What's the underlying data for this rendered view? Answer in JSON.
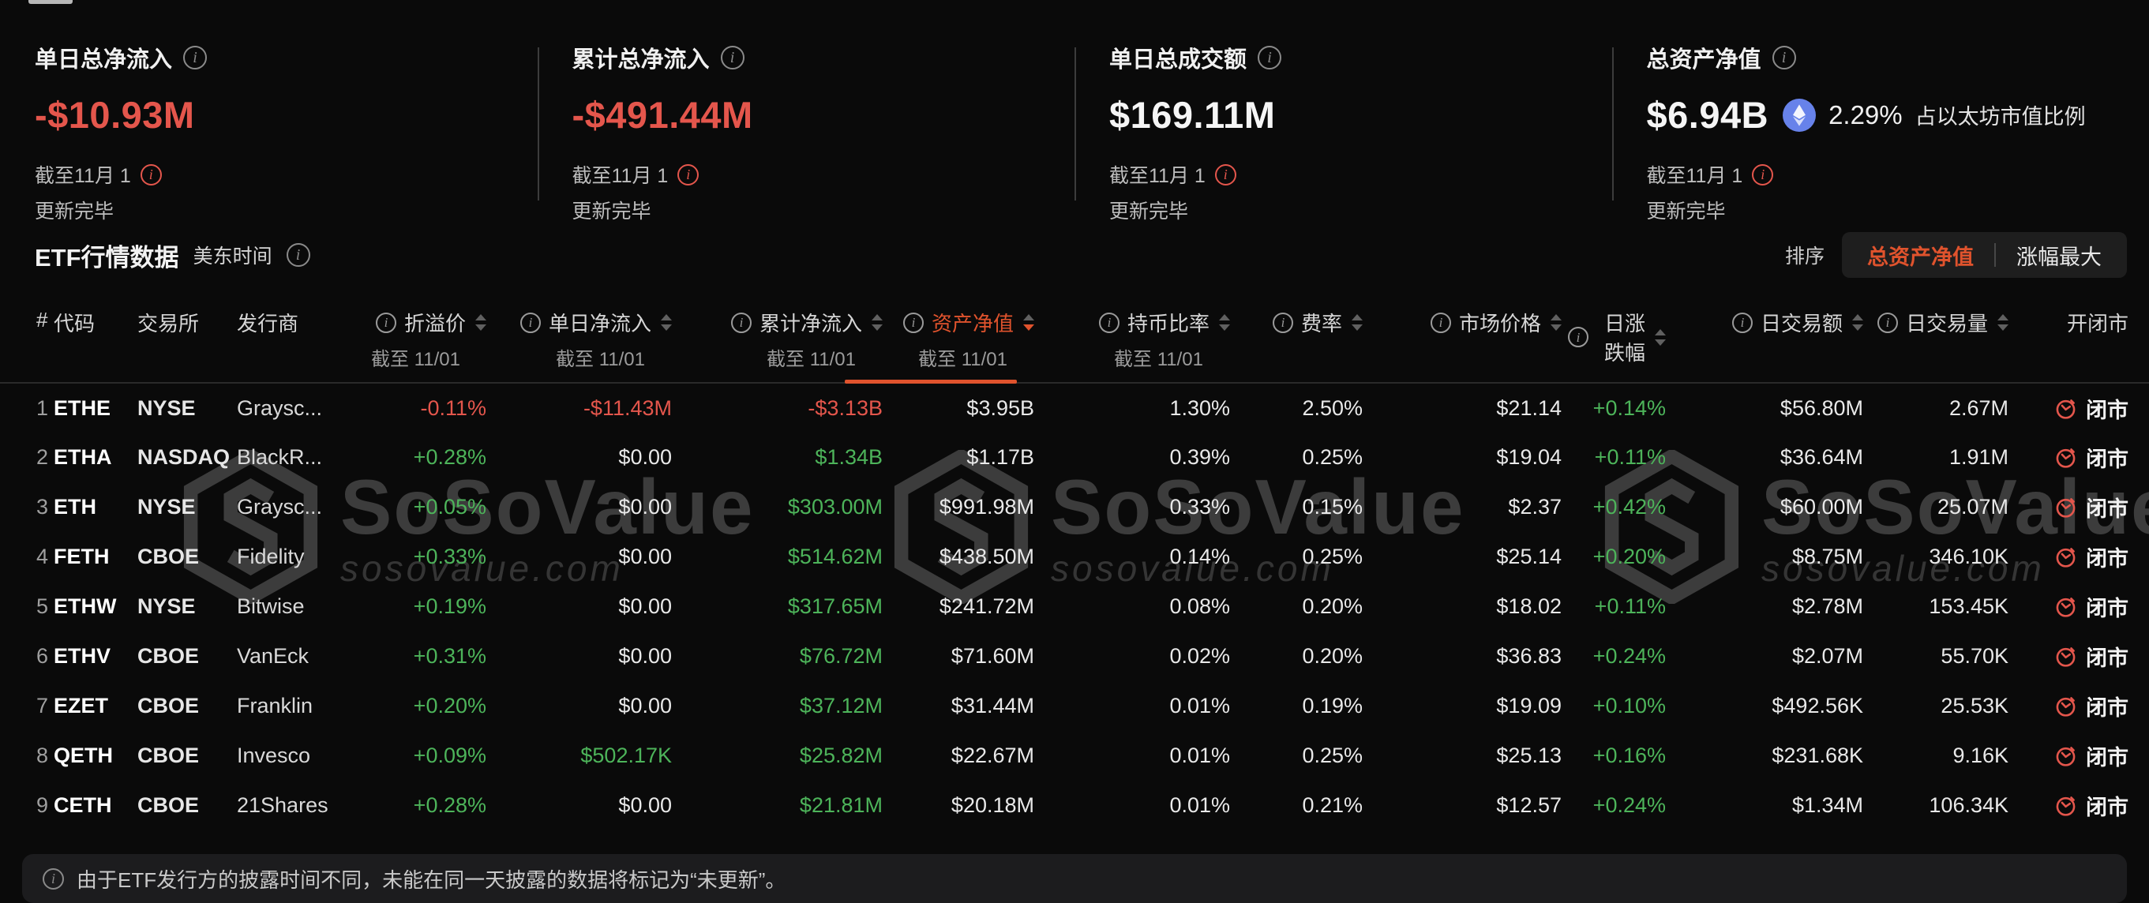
{
  "summary_cards": [
    {
      "title": "单日总净流入",
      "value": "-$10.93M",
      "as_of": "截至11月 1",
      "status": "更新完毕"
    },
    {
      "title": "累计总净流入",
      "value": "-$491.44M",
      "as_of": "截至11月 1",
      "status": "更新完毕"
    },
    {
      "title": "单日总成交额",
      "value": "$169.11M",
      "as_of": "截至11月 1",
      "status": "更新完毕"
    },
    {
      "title": "总资产净值",
      "value": "$6.94B",
      "eth_share_pct": "2.29%",
      "eth_share_label": "占以太坊市值比例",
      "as_of": "截至11月 1",
      "status": "更新完毕"
    }
  ],
  "section": {
    "title": "ETF行情数据",
    "timezone": "美东时间",
    "sort_label": "排序",
    "sort_options": [
      {
        "label": "总资产净值",
        "active": true
      },
      {
        "label": "涨幅最大",
        "active": false
      }
    ]
  },
  "table": {
    "columns": [
      {
        "key": "rank",
        "label": "#"
      },
      {
        "key": "code",
        "label": "代码"
      },
      {
        "key": "exchange",
        "label": "交易所"
      },
      {
        "key": "issuer",
        "label": "发行商"
      },
      {
        "key": "premium",
        "label": "折溢价",
        "sub": "截至 11/01",
        "info": true,
        "sortable": true,
        "num": true
      },
      {
        "key": "daily_inflow",
        "label": "单日净流入",
        "sub": "截至 11/01",
        "info": true,
        "sortable": true,
        "num": true
      },
      {
        "key": "cum_inflow",
        "label": "累计净流入",
        "sub": "截至 11/01",
        "info": true,
        "sortable": true,
        "num": true
      },
      {
        "key": "nav",
        "label": "资产净值",
        "sub": "截至 11/01",
        "info": true,
        "sortable": true,
        "num": true,
        "active": true
      },
      {
        "key": "holding_ratio",
        "label": "持币比率",
        "sub": "截至 11/01",
        "info": true,
        "sortable": true,
        "num": true
      },
      {
        "key": "fee",
        "label": "费率",
        "info": true,
        "sortable": true,
        "num": true
      },
      {
        "key": "price",
        "label": "市场价格",
        "info": true,
        "sortable": true,
        "num": true
      },
      {
        "key": "change",
        "label": "日涨跌幅",
        "info": true,
        "sortable": true,
        "num": true
      },
      {
        "key": "volume_usd",
        "label": "日交易额",
        "info": true,
        "sortable": true,
        "num": true
      },
      {
        "key": "volume_shares",
        "label": "日交易量",
        "info": true,
        "sortable": true,
        "num": true
      },
      {
        "key": "market_status",
        "label": "开闭市",
        "num": true
      }
    ],
    "rows": [
      {
        "rank": "1",
        "code": "ETHE",
        "exchange": "NYSE",
        "issuer": "Graysc...",
        "premium": {
          "v": "-0.11%",
          "c": "red"
        },
        "daily_inflow": {
          "v": "-$11.43M",
          "c": "red"
        },
        "cum_inflow": {
          "v": "-$3.13B",
          "c": "red"
        },
        "nav": "$3.95B",
        "holding_ratio": "1.30%",
        "fee": "2.50%",
        "price": "$21.14",
        "change": {
          "v": "+0.14%",
          "c": "green"
        },
        "volume_usd": "$56.80M",
        "volume_shares": "2.67M",
        "market_status": "闭市"
      },
      {
        "rank": "2",
        "code": "ETHA",
        "exchange": "NASDAQ",
        "issuer": "BlackR...",
        "premium": {
          "v": "+0.28%",
          "c": "green"
        },
        "daily_inflow": {
          "v": "$0.00",
          "c": "white"
        },
        "cum_inflow": {
          "v": "$1.34B",
          "c": "green"
        },
        "nav": "$1.17B",
        "holding_ratio": "0.39%",
        "fee": "0.25%",
        "price": "$19.04",
        "change": {
          "v": "+0.11%",
          "c": "green"
        },
        "volume_usd": "$36.64M",
        "volume_shares": "1.91M",
        "market_status": "闭市"
      },
      {
        "rank": "3",
        "code": "ETH",
        "exchange": "NYSE",
        "issuer": "Graysc...",
        "premium": {
          "v": "+0.05%",
          "c": "green"
        },
        "daily_inflow": {
          "v": "$0.00",
          "c": "white"
        },
        "cum_inflow": {
          "v": "$303.00M",
          "c": "green"
        },
        "nav": "$991.98M",
        "holding_ratio": "0.33%",
        "fee": "0.15%",
        "price": "$2.37",
        "change": {
          "v": "+0.42%",
          "c": "green"
        },
        "volume_usd": "$60.00M",
        "volume_shares": "25.07M",
        "market_status": "闭市"
      },
      {
        "rank": "4",
        "code": "FETH",
        "exchange": "CBOE",
        "issuer": "Fidelity",
        "premium": {
          "v": "+0.33%",
          "c": "green"
        },
        "daily_inflow": {
          "v": "$0.00",
          "c": "white"
        },
        "cum_inflow": {
          "v": "$514.62M",
          "c": "green"
        },
        "nav": "$438.50M",
        "holding_ratio": "0.14%",
        "fee": "0.25%",
        "price": "$25.14",
        "change": {
          "v": "+0.20%",
          "c": "green"
        },
        "volume_usd": "$8.75M",
        "volume_shares": "346.10K",
        "market_status": "闭市"
      },
      {
        "rank": "5",
        "code": "ETHW",
        "exchange": "NYSE",
        "issuer": "Bitwise",
        "premium": {
          "v": "+0.19%",
          "c": "green"
        },
        "daily_inflow": {
          "v": "$0.00",
          "c": "white"
        },
        "cum_inflow": {
          "v": "$317.65M",
          "c": "green"
        },
        "nav": "$241.72M",
        "holding_ratio": "0.08%",
        "fee": "0.20%",
        "price": "$18.02",
        "change": {
          "v": "+0.11%",
          "c": "green"
        },
        "volume_usd": "$2.78M",
        "volume_shares": "153.45K",
        "market_status": "闭市"
      },
      {
        "rank": "6",
        "code": "ETHV",
        "exchange": "CBOE",
        "issuer": "VanEck",
        "premium": {
          "v": "+0.31%",
          "c": "green"
        },
        "daily_inflow": {
          "v": "$0.00",
          "c": "white"
        },
        "cum_inflow": {
          "v": "$76.72M",
          "c": "green"
        },
        "nav": "$71.60M",
        "holding_ratio": "0.02%",
        "fee": "0.20%",
        "price": "$36.83",
        "change": {
          "v": "+0.24%",
          "c": "green"
        },
        "volume_usd": "$2.07M",
        "volume_shares": "55.70K",
        "market_status": "闭市"
      },
      {
        "rank": "7",
        "code": "EZET",
        "exchange": "CBOE",
        "issuer": "Franklin",
        "premium": {
          "v": "+0.20%",
          "c": "green"
        },
        "daily_inflow": {
          "v": "$0.00",
          "c": "white"
        },
        "cum_inflow": {
          "v": "$37.12M",
          "c": "green"
        },
        "nav": "$31.44M",
        "holding_ratio": "0.01%",
        "fee": "0.19%",
        "price": "$19.09",
        "change": {
          "v": "+0.10%",
          "c": "green"
        },
        "volume_usd": "$492.56K",
        "volume_shares": "25.53K",
        "market_status": "闭市"
      },
      {
        "rank": "8",
        "code": "QETH",
        "exchange": "CBOE",
        "issuer": "Invesco",
        "premium": {
          "v": "+0.09%",
          "c": "green"
        },
        "daily_inflow": {
          "v": "$502.17K",
          "c": "green"
        },
        "cum_inflow": {
          "v": "$25.82M",
          "c": "green"
        },
        "nav": "$22.67M",
        "holding_ratio": "0.01%",
        "fee": "0.25%",
        "price": "$25.13",
        "change": {
          "v": "+0.16%",
          "c": "green"
        },
        "volume_usd": "$231.68K",
        "volume_shares": "9.16K",
        "market_status": "闭市"
      },
      {
        "rank": "9",
        "code": "CETH",
        "exchange": "CBOE",
        "issuer": "21Shares",
        "premium": {
          "v": "+0.28%",
          "c": "green"
        },
        "daily_inflow": {
          "v": "$0.00",
          "c": "white"
        },
        "cum_inflow": {
          "v": "$21.81M",
          "c": "green"
        },
        "nav": "$20.18M",
        "holding_ratio": "0.01%",
        "fee": "0.21%",
        "price": "$12.57",
        "change": {
          "v": "+0.24%",
          "c": "green"
        },
        "volume_usd": "$1.34M",
        "volume_shares": "106.34K",
        "market_status": "闭市"
      }
    ]
  },
  "watermark": {
    "brand": "SoSoValue",
    "domain": "sosovalue.com"
  },
  "footer_note": "由于ETF发行方的披露时间不同，未能在同一天披露的数据将标记为“未更新”。",
  "colors": {
    "red": "#e4564c",
    "green": "#4db45a",
    "orange": "#e0532d",
    "eth-blue": "#6782ea"
  }
}
